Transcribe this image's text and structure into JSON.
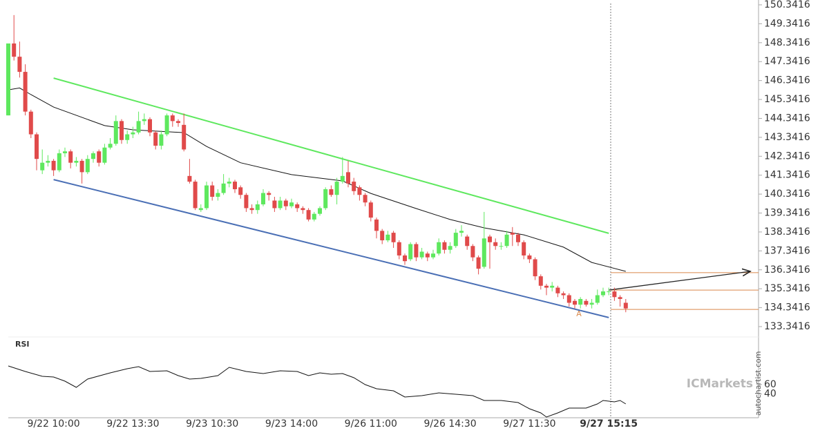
{
  "chart_data": {
    "type": "candlestick",
    "categories": [
      null,
      null,
      null,
      null,
      null,
      null,
      null,
      null,
      "9/22 10:00",
      null,
      null,
      null,
      null,
      null,
      null,
      null,
      null,
      null,
      null,
      null,
      null,
      null,
      "9/22 13:30",
      null,
      null,
      null,
      null,
      null,
      null,
      null,
      null,
      null,
      null,
      null,
      null,
      null,
      "9/23 10:30",
      null,
      null,
      null,
      null,
      null,
      null,
      null,
      null,
      null,
      null,
      null,
      null,
      null,
      "9/23 14:00",
      null,
      null,
      null,
      null,
      null,
      null,
      null,
      null,
      null,
      null,
      null,
      null,
      null,
      "9/26 11:00",
      null,
      null,
      null,
      null,
      null,
      null,
      null,
      null,
      null,
      null,
      null,
      null,
      null,
      "9/26 14:30",
      null,
      null,
      null,
      null,
      null,
      null,
      null,
      null,
      null,
      null,
      null,
      null,
      null,
      "9/27 11:30",
      null,
      null,
      null,
      null,
      null,
      null,
      null,
      null,
      null,
      null,
      null,
      null,
      null,
      "9/27 15:15",
      null,
      null,
      null
    ],
    "open": [
      144.5,
      148.3,
      147.6,
      146.8,
      144.7,
      143.5,
      141.6,
      142.0,
      142.1,
      141.6,
      142.5,
      142.6,
      142.0,
      142.1,
      141.5,
      142.2,
      142.6,
      142.0,
      142.8,
      143.0,
      144.2,
      143.2,
      143.5,
      143.6,
      144.2,
      144.3,
      143.6,
      142.9,
      143.5,
      144.5,
      144.2,
      144.0,
      141.3,
      141.0,
      139.5,
      139.6,
      140.8,
      140.2,
      140.4,
      140.9,
      141.0,
      140.7,
      140.3,
      139.6,
      139.5,
      139.8,
      140.4,
      140.0,
      139.6,
      140.0,
      139.7,
      139.8,
      139.6,
      139.5,
      139.0,
      139.3,
      139.6,
      140.6,
      140.3,
      141.0,
      141.5,
      141.0,
      140.7,
      140.3,
      139.9,
      139.0,
      138.4,
      137.9,
      138.3,
      137.8,
      137.1,
      136.9,
      137.7,
      137.0,
      137.2,
      137.0,
      137.2,
      137.8,
      137.4,
      137.6,
      138.3,
      138.1,
      137.6,
      137.0,
      136.5,
      138.1,
      137.8,
      137.6,
      137.6,
      138.3,
      138.2,
      137.8,
      137.1,
      136.9,
      136.0,
      135.5,
      135.4,
      135.4,
      135.1,
      135.0,
      134.7,
      134.5,
      134.7,
      134.5,
      134.6,
      135.0,
      135.2,
      135.2,
      134.9,
      134.6
    ],
    "high": [
      148.3,
      149.8,
      148.4,
      147.2,
      144.8,
      143.6,
      142.7,
      142.4,
      142.2,
      142.7,
      142.8,
      142.7,
      142.3,
      142.2,
      142.4,
      142.6,
      142.7,
      143.0,
      143.3,
      144.5,
      144.3,
      143.7,
      143.9,
      144.7,
      144.6,
      144.4,
      143.7,
      143.7,
      144.6,
      144.6,
      144.3,
      144.6,
      142.2,
      141.1,
      139.8,
      141.0,
      141.0,
      140.6,
      141.4,
      141.2,
      141.1,
      140.8,
      140.4,
      139.8,
      140.0,
      140.6,
      140.5,
      140.2,
      140.2,
      140.1,
      140.1,
      139.9,
      139.7,
      139.6,
      139.4,
      139.7,
      140.7,
      140.8,
      141.2,
      142.3,
      142.1,
      141.2,
      140.8,
      140.4,
      140.0,
      139.1,
      138.5,
      138.4,
      138.4,
      137.9,
      137.2,
      137.8,
      137.8,
      137.5,
      137.3,
      137.4,
      138.0,
      137.9,
      137.8,
      138.5,
      138.7,
      138.2,
      137.7,
      137.1,
      139.4,
      138.2,
      138.0,
      137.8,
      138.4,
      138.6,
      138.3,
      137.9,
      137.2,
      137.0,
      136.1,
      135.6,
      135.7,
      135.5,
      135.2,
      135.1,
      134.8,
      134.9,
      134.8,
      134.8,
      135.3,
      135.4,
      135.4,
      135.4,
      135.0,
      134.8
    ],
    "low": [
      144.5,
      147.4,
      146.5,
      144.5,
      143.3,
      141.6,
      141.4,
      141.8,
      141.3,
      141.5,
      142.3,
      141.7,
      141.8,
      140.9,
      141.4,
      142.0,
      141.8,
      141.9,
      142.7,
      142.9,
      143.0,
      143.0,
      143.3,
      143.5,
      144.0,
      143.4,
      142.7,
      142.7,
      143.4,
      143.9,
      143.9,
      142.6,
      140.9,
      139.5,
      139.4,
      139.5,
      140.0,
      140.0,
      140.3,
      140.7,
      140.4,
      140.1,
      139.4,
      139.3,
      139.3,
      139.7,
      140.0,
      139.4,
      139.5,
      139.5,
      139.6,
      139.4,
      139.3,
      138.9,
      138.9,
      139.2,
      139.5,
      140.2,
      139.8,
      140.9,
      140.7,
      140.3,
      140.0,
      139.7,
      138.9,
      138.0,
      137.7,
      137.8,
      137.5,
      136.9,
      136.6,
      136.8,
      136.8,
      136.9,
      136.8,
      136.9,
      137.1,
      137.2,
      137.2,
      137.5,
      138.1,
      137.4,
      136.8,
      136.1,
      136.4,
      136.4,
      137.4,
      137.4,
      137.5,
      137.6,
      137.6,
      136.9,
      136.7,
      135.8,
      135.3,
      135.0,
      135.2,
      134.9,
      134.8,
      134.4,
      134.3,
      134.3,
      134.4,
      134.3,
      134.5,
      134.9,
      135.0,
      134.7,
      134.4,
      134.1
    ],
    "close": [
      148.3,
      147.6,
      146.8,
      144.7,
      143.5,
      142.2,
      142.0,
      142.1,
      141.6,
      142.5,
      142.6,
      142.0,
      142.1,
      141.5,
      142.2,
      142.5,
      142.0,
      142.8,
      143.0,
      144.2,
      143.2,
      143.5,
      143.6,
      144.2,
      144.3,
      143.6,
      142.9,
      143.5,
      144.5,
      144.2,
      144.1,
      142.7,
      141.0,
      139.6,
      139.6,
      140.8,
      140.2,
      140.4,
      140.9,
      141.0,
      140.6,
      140.3,
      139.6,
      139.5,
      139.8,
      140.4,
      140.3,
      139.6,
      140.0,
      139.7,
      139.9,
      139.6,
      139.5,
      139.0,
      139.3,
      139.6,
      140.6,
      140.3,
      141.0,
      141.3,
      140.9,
      140.5,
      140.3,
      139.9,
      139.1,
      138.4,
      137.9,
      138.2,
      137.8,
      137.1,
      136.8,
      137.7,
      137.0,
      137.3,
      137.0,
      137.2,
      137.8,
      137.4,
      137.6,
      138.3,
      138.4,
      137.6,
      137.0,
      136.4,
      138.0,
      137.8,
      137.6,
      137.6,
      138.2,
      138.2,
      137.8,
      137.1,
      136.9,
      136.0,
      135.5,
      135.4,
      135.5,
      135.1,
      135.0,
      134.6,
      134.5,
      134.8,
      134.5,
      134.6,
      135.0,
      135.2,
      135.2,
      134.9,
      134.8,
      134.3
    ],
    "up_color": "#5ee85e",
    "down_color": "#e04a4a",
    "ylim": [
      133.3416,
      150.3416
    ],
    "yticks": [
      150.3416,
      149.3416,
      148.3416,
      147.3416,
      146.3416,
      145.3416,
      144.3416,
      143.3416,
      142.3416,
      141.3416,
      140.3416,
      139.3416,
      138.3416,
      137.3416,
      136.3416,
      135.3416,
      134.3416,
      133.3416
    ],
    "moving_average": {
      "color": "#111111",
      "x": [
        0,
        2,
        4,
        8,
        17,
        22,
        31,
        35,
        41,
        50,
        59,
        64,
        72,
        78,
        84,
        91,
        98,
        103,
        109
      ],
      "values": [
        145.85,
        145.95,
        145.6,
        144.94,
        143.96,
        143.74,
        143.59,
        142.86,
        142.0,
        141.37,
        141.04,
        140.38,
        139.58,
        139.0,
        138.56,
        138.19,
        137.54,
        136.73,
        136.26
      ]
    },
    "channel_upper": {
      "color": "#5ee85e",
      "x": [
        8,
        106
      ],
      "values": [
        146.47,
        138.27
      ]
    },
    "channel_lower": {
      "color": "#4a6fb5",
      "x": [
        8,
        106
      ],
      "values": [
        141.11,
        133.82
      ]
    },
    "levels": {
      "color": "#d9884a",
      "values": [
        136.19,
        135.27,
        134.25
      ]
    },
    "projection": {
      "color": "#222222",
      "x": [
        106,
        131
      ],
      "values": [
        135.27,
        136.26
      ]
    },
    "annotation": "A",
    "rsi": {
      "label": "RSI",
      "color": "#111111",
      "ylim": [
        -10,
        150
      ],
      "yticks": [
        60,
        40
      ],
      "x": [
        0,
        3,
        6,
        8,
        10,
        12,
        14,
        18,
        21,
        23,
        25,
        28,
        30,
        32,
        34,
        37,
        39,
        42,
        45,
        48,
        51,
        53,
        55,
        57,
        59,
        61,
        63,
        65,
        68,
        70,
        73,
        76,
        79,
        82,
        84,
        87,
        90,
        92,
        94,
        95,
        97,
        99,
        102,
        104,
        105,
        107,
        108,
        109
      ],
      "values": [
        99.1,
        87.5,
        77.3,
        75.8,
        67.1,
        54.0,
        71.5,
        84.5,
        93.3,
        97.6,
        87.5,
        88.9,
        78.7,
        71.5,
        72.9,
        78.7,
        96.2,
        87.5,
        83.1,
        88.9,
        87.5,
        78.7,
        84.5,
        81.6,
        83.1,
        74.4,
        59.8,
        51.1,
        46.7,
        33.6,
        36.5,
        42.4,
        39.5,
        36.5,
        26.4,
        26.4,
        22.0,
        8.9,
        0.2,
        -8.5,
        0.2,
        10.4,
        10.4,
        19.1,
        26.4,
        23.5,
        26.4,
        19.1
      ]
    },
    "watermark": "ICMarkets",
    "credit": "autochartist.com"
  }
}
